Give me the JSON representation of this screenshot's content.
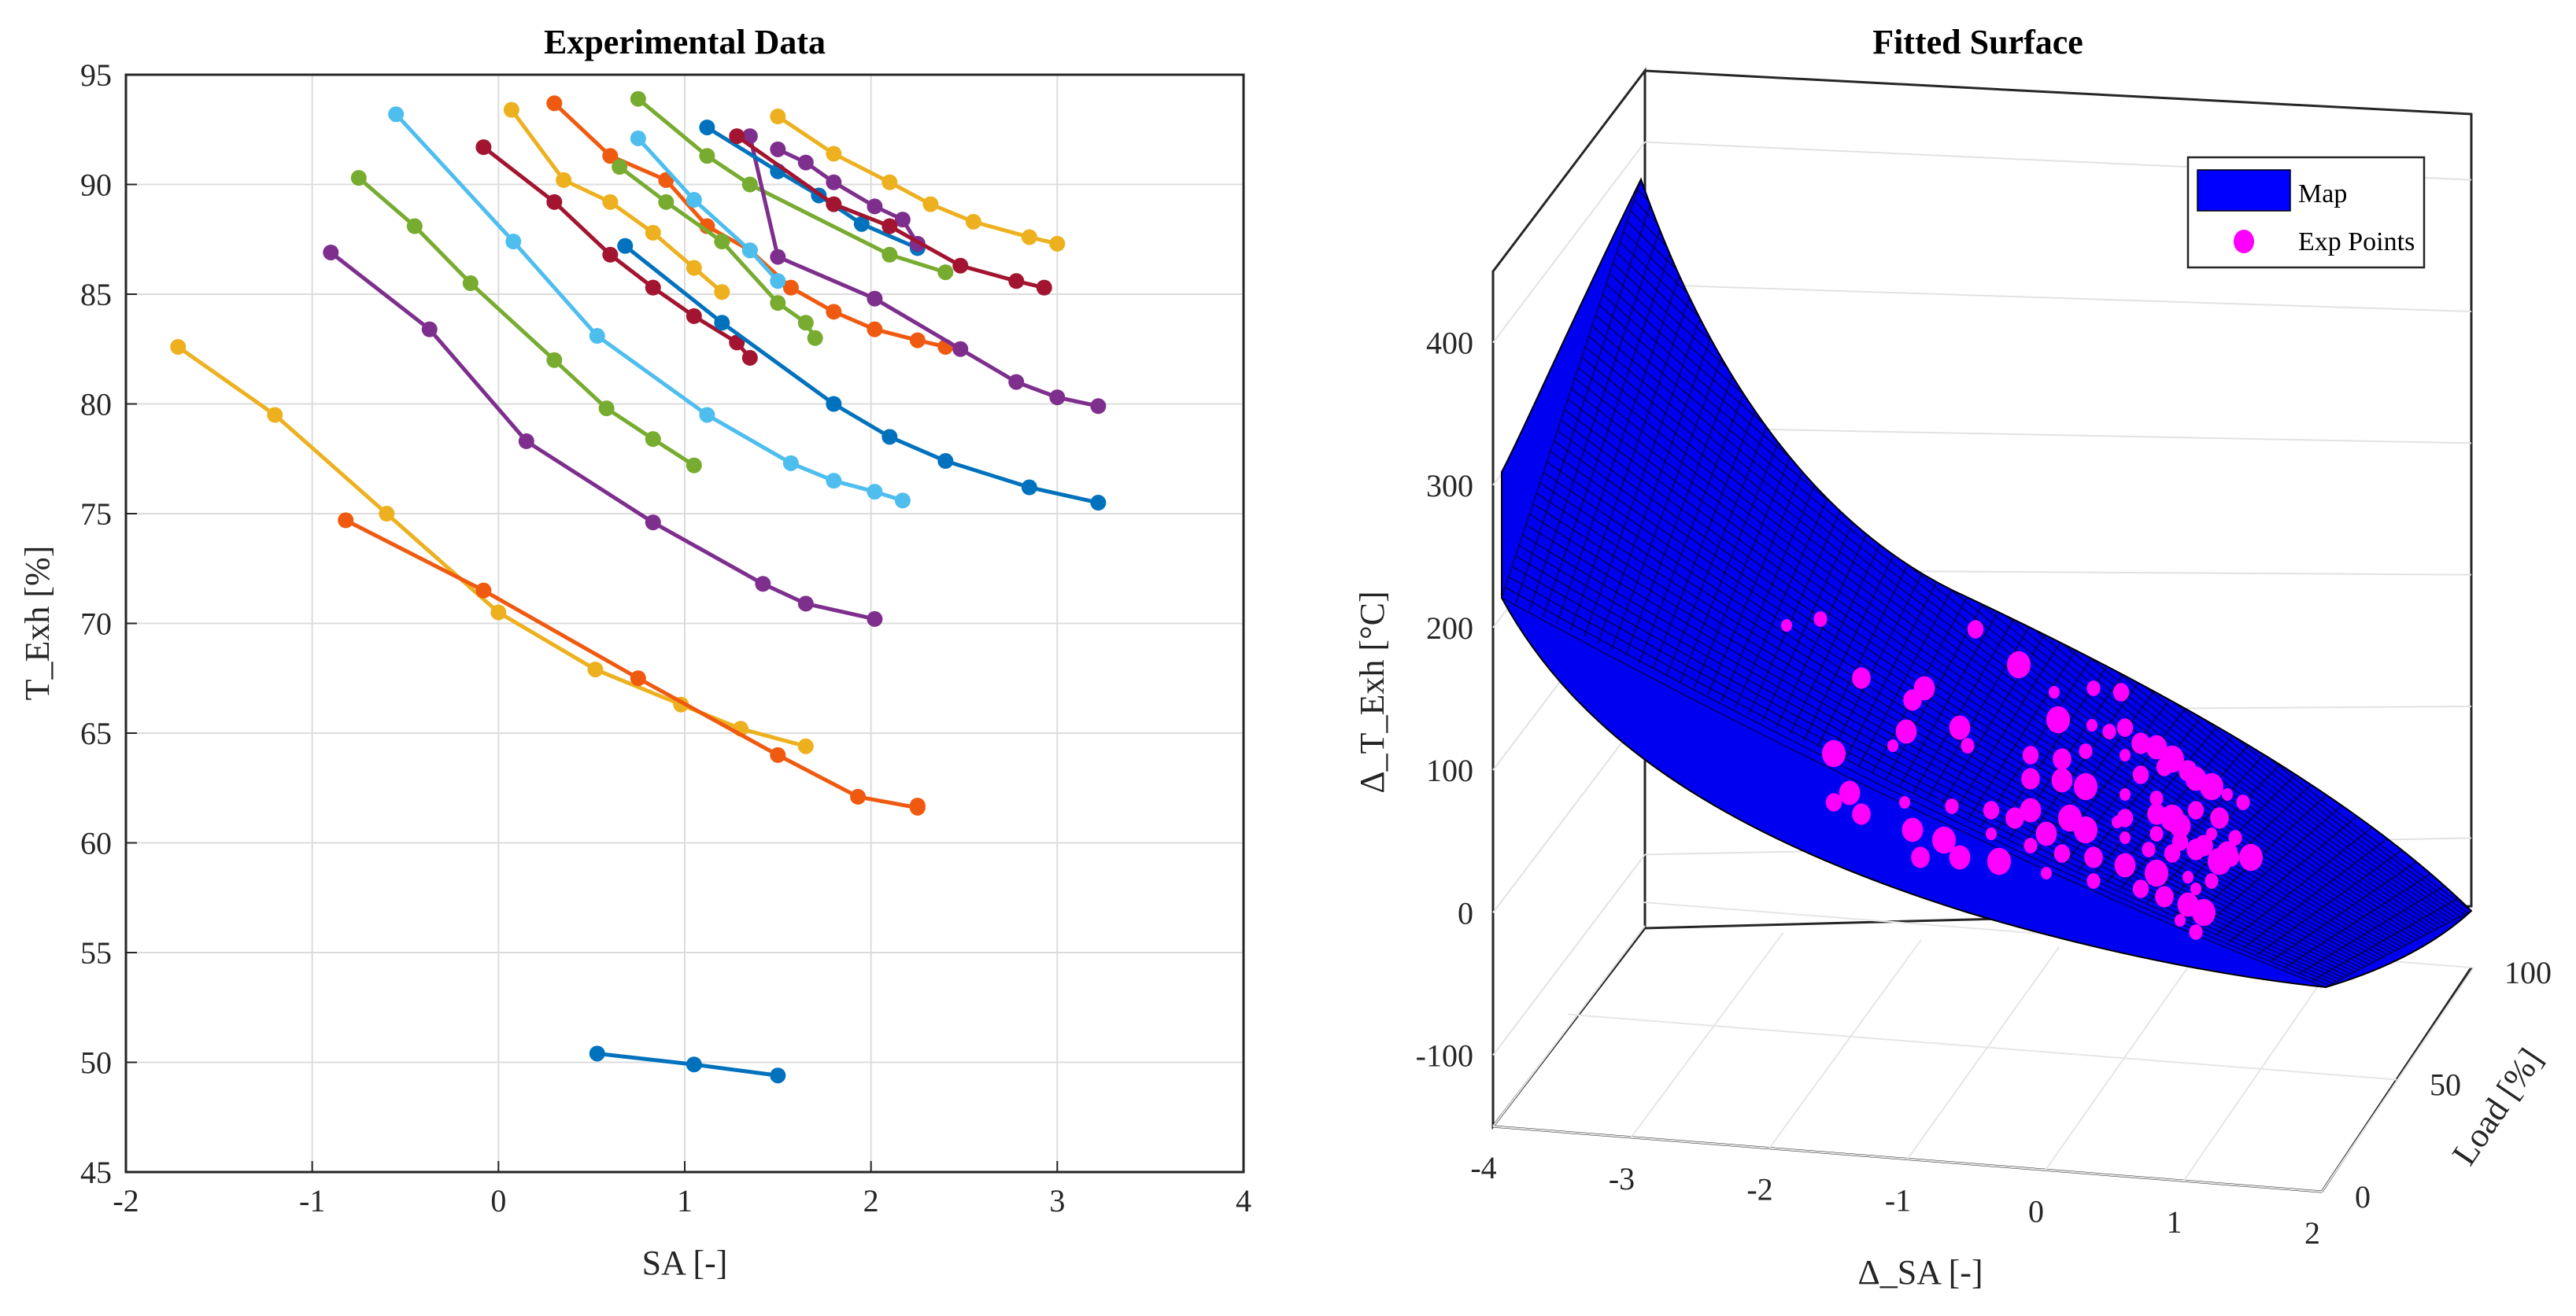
{
  "chart_data": [
    {
      "type": "line",
      "title": "Experimental Data",
      "xlabel": "SA [-]",
      "ylabel": "T_Exh [%]",
      "xlim": [
        -2,
        4
      ],
      "ylim": [
        45,
        95
      ],
      "xticks": [
        "-2",
        "-1",
        "0",
        "1",
        "2",
        "3",
        "4"
      ],
      "yticks": [
        "45",
        "50",
        "55",
        "60",
        "65",
        "70",
        "75",
        "80",
        "85",
        "90",
        "95"
      ],
      "grid": true,
      "series": [
        {
          "color": "#EDB120",
          "points": [
            [
              -1.72,
              82.6
            ],
            [
              -1.2,
              79.5
            ],
            [
              -0.6,
              75.0
            ],
            [
              0.0,
              70.5
            ],
            [
              0.52,
              67.9
            ],
            [
              0.98,
              66.3
            ],
            [
              1.3,
              65.2
            ],
            [
              1.65,
              64.4
            ]
          ]
        },
        {
          "color": "#F05A10",
          "points": [
            [
              -0.82,
              74.7
            ],
            [
              -0.08,
              71.5
            ],
            [
              0.75,
              67.5
            ],
            [
              1.5,
              64.0
            ],
            [
              1.93,
              62.1
            ],
            [
              2.25,
              61.6
            ],
            [
              2.25,
              61.7
            ]
          ]
        },
        {
          "color": "#0072BD",
          "points": [
            [
              0.53,
              50.4
            ],
            [
              1.05,
              49.9
            ],
            [
              1.5,
              49.4
            ]
          ]
        },
        {
          "color": "#7E2F8E",
          "points": [
            [
              -0.9,
              86.9
            ],
            [
              -0.37,
              83.4
            ],
            [
              0.15,
              78.3
            ],
            [
              0.83,
              74.6
            ],
            [
              1.42,
              71.8
            ],
            [
              1.65,
              70.9
            ],
            [
              2.02,
              70.2
            ]
          ]
        },
        {
          "color": "#77AC30",
          "points": [
            [
              -0.75,
              90.3
            ],
            [
              -0.45,
              88.1
            ],
            [
              -0.15,
              85.5
            ],
            [
              0.3,
              82.0
            ],
            [
              0.58,
              79.8
            ],
            [
              0.83,
              78.4
            ],
            [
              1.05,
              77.2
            ]
          ]
        },
        {
          "color": "#4DBEEE",
          "points": [
            [
              -0.55,
              93.2
            ],
            [
              0.08,
              87.4
            ],
            [
              0.53,
              83.1
            ],
            [
              1.12,
              79.5
            ],
            [
              1.57,
              77.3
            ],
            [
              1.8,
              76.5
            ],
            [
              2.02,
              76.0
            ],
            [
              2.17,
              75.6
            ]
          ]
        },
        {
          "color": "#A2142F",
          "points": [
            [
              -0.08,
              91.7
            ],
            [
              0.3,
              89.2
            ],
            [
              0.6,
              86.8
            ],
            [
              0.83,
              85.3
            ],
            [
              1.05,
              84.0
            ],
            [
              1.28,
              82.8
            ],
            [
              1.35,
              82.1
            ]
          ]
        },
        {
          "color": "#EDB120",
          "points": [
            [
              0.07,
              93.4
            ],
            [
              0.35,
              90.2
            ],
            [
              0.6,
              89.2
            ],
            [
              0.83,
              87.8
            ],
            [
              1.05,
              86.2
            ],
            [
              1.2,
              85.1
            ]
          ]
        },
        {
          "color": "#F05A10",
          "points": [
            [
              0.3,
              93.7
            ],
            [
              0.6,
              91.3
            ],
            [
              0.9,
              90.2
            ],
            [
              1.12,
              88.1
            ],
            [
              1.35,
              87.0
            ],
            [
              1.57,
              85.3
            ],
            [
              1.8,
              84.2
            ],
            [
              2.02,
              83.4
            ],
            [
              2.25,
              82.9
            ],
            [
              2.4,
              82.6
            ]
          ]
        },
        {
          "color": "#0072BD",
          "points": [
            [
              0.68,
              87.2
            ],
            [
              1.2,
              83.7
            ],
            [
              1.8,
              80.0
            ],
            [
              2.1,
              78.5
            ],
            [
              2.4,
              77.4
            ],
            [
              2.85,
              76.2
            ],
            [
              3.22,
              75.5
            ]
          ]
        },
        {
          "color": "#4DBEEE",
          "points": [
            [
              0.75,
              92.1
            ],
            [
              1.05,
              89.3
            ],
            [
              1.35,
              87.0
            ],
            [
              1.5,
              85.6
            ]
          ]
        },
        {
          "color": "#77AC30",
          "points": [
            [
              0.75,
              93.9
            ],
            [
              1.12,
              91.3
            ],
            [
              1.35,
              90.0
            ],
            [
              2.1,
              86.8
            ],
            [
              2.4,
              86.0
            ]
          ]
        },
        {
          "color": "#77AC30",
          "points": [
            [
              0.65,
              90.8
            ],
            [
              0.9,
              89.2
            ],
            [
              1.2,
              87.4
            ],
            [
              1.5,
              84.6
            ],
            [
              1.65,
              83.7
            ],
            [
              1.7,
              83.0
            ]
          ]
        },
        {
          "color": "#7E2F8E",
          "points": [
            [
              1.35,
              92.2
            ],
            [
              1.5,
              86.7
            ],
            [
              2.02,
              84.8
            ],
            [
              2.48,
              82.5
            ],
            [
              2.78,
              81.0
            ],
            [
              3.0,
              80.3
            ],
            [
              3.22,
              79.9
            ]
          ]
        },
        {
          "color": "#0072BD",
          "points": [
            [
              1.12,
              92.6
            ],
            [
              1.5,
              90.6
            ],
            [
              1.72,
              89.5
            ],
            [
              1.95,
              88.2
            ],
            [
              2.25,
              87.1
            ]
          ]
        },
        {
          "color": "#7E2F8E",
          "points": [
            [
              1.5,
              91.6
            ],
            [
              1.65,
              91.0
            ],
            [
              1.8,
              90.1
            ],
            [
              2.02,
              89.0
            ],
            [
              2.17,
              88.4
            ],
            [
              2.25,
              87.3
            ]
          ]
        },
        {
          "color": "#A2142F",
          "points": [
            [
              1.28,
              92.2
            ],
            [
              1.8,
              89.1
            ],
            [
              2.1,
              88.1
            ],
            [
              2.48,
              86.3
            ],
            [
              2.78,
              85.6
            ],
            [
              2.93,
              85.3
            ]
          ]
        },
        {
          "color": "#EDB120",
          "points": [
            [
              1.5,
              93.1
            ],
            [
              1.8,
              91.4
            ],
            [
              2.1,
              90.1
            ],
            [
              2.32,
              89.1
            ],
            [
              2.55,
              88.3
            ],
            [
              2.85,
              87.6
            ],
            [
              3.0,
              87.3
            ]
          ]
        }
      ]
    },
    {
      "type": "scatter",
      "title": "Fitted Surface",
      "xlabel": "Δ_SA [-]",
      "ylabel": "Load [%]",
      "zlabel": "Δ_T_Exh [°C]",
      "xlim": [
        -4,
        2
      ],
      "ylim": [
        0,
        100
      ],
      "zlim": [
        -150,
        450
      ],
      "xticks": [
        "-4",
        "-3",
        "-2",
        "-1",
        "0",
        "1",
        "2"
      ],
      "yticks": [
        "0",
        "50",
        "100"
      ],
      "zticks": [
        "-100",
        "0",
        "100",
        "200",
        "300",
        "400"
      ],
      "legend": {
        "position": "top-right",
        "entries": [
          "Map",
          "Exp Points"
        ]
      },
      "surface": {
        "name": "Map",
        "color": "#0000FF",
        "edge_color": "#000000"
      },
      "scatter": {
        "name": "Exp Points",
        "color": "#FF00FF"
      }
    }
  ]
}
